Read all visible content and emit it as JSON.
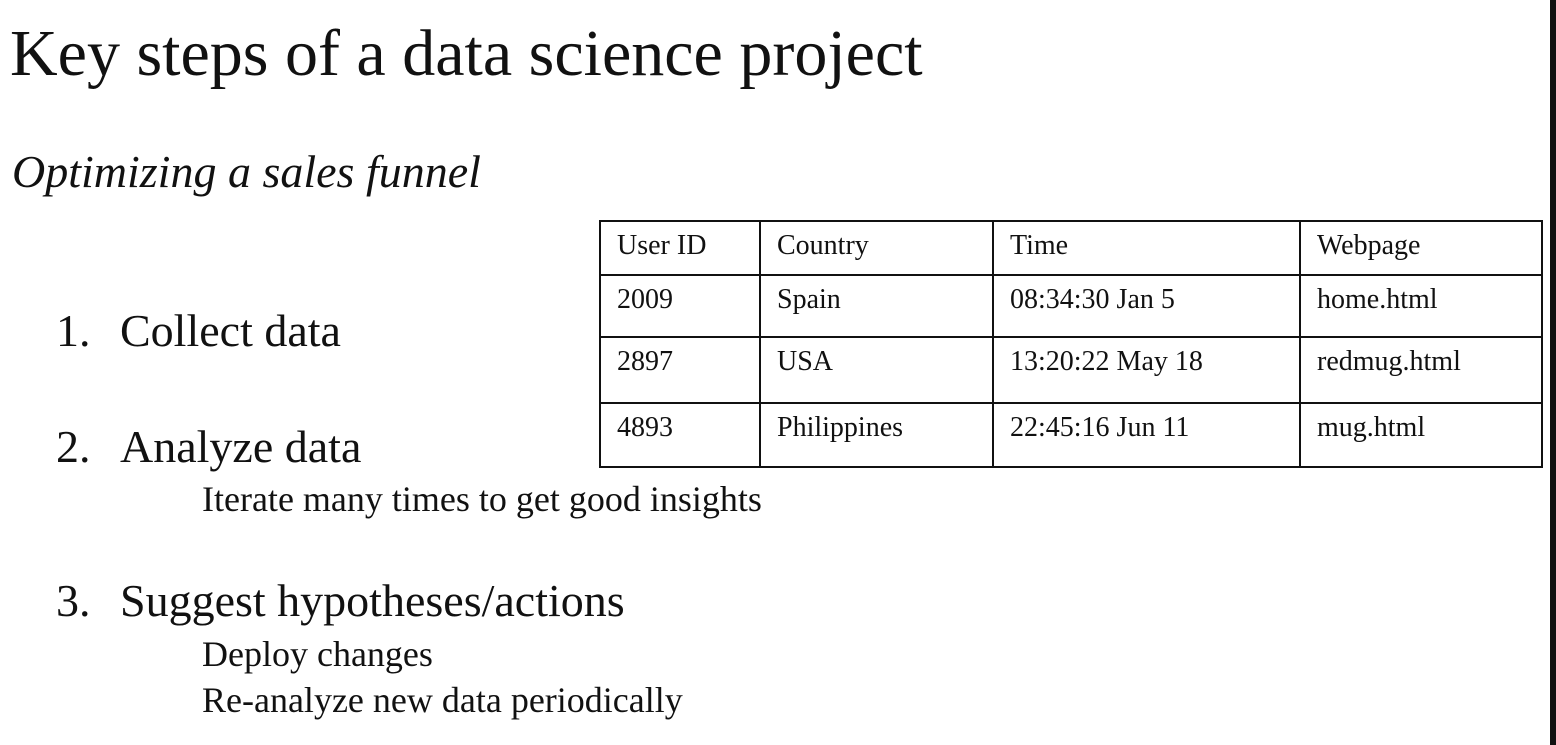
{
  "title": "Key steps of a data science project",
  "subtitle": "Optimizing a sales funnel",
  "steps": [
    {
      "number": "1.",
      "label": "Collect data",
      "details": []
    },
    {
      "number": "2.",
      "label": "Analyze data",
      "details": [
        "Iterate many times to get good insights"
      ]
    },
    {
      "number": "3.",
      "label": "Suggest hypotheses/actions",
      "details": [
        "Deploy changes",
        "Re-analyze new data periodically"
      ]
    }
  ],
  "table": {
    "headers": [
      "User ID",
      "Country",
      "Time",
      "Webpage"
    ],
    "rows": [
      [
        "2009",
        "Spain",
        "08:34:30 Jan 5",
        "home.html"
      ],
      [
        "2897",
        "USA",
        "13:20:22 May 18",
        "redmug.html"
      ],
      [
        "4893",
        "Philippines",
        "22:45:16 Jun 11",
        "mug.html"
      ]
    ]
  }
}
